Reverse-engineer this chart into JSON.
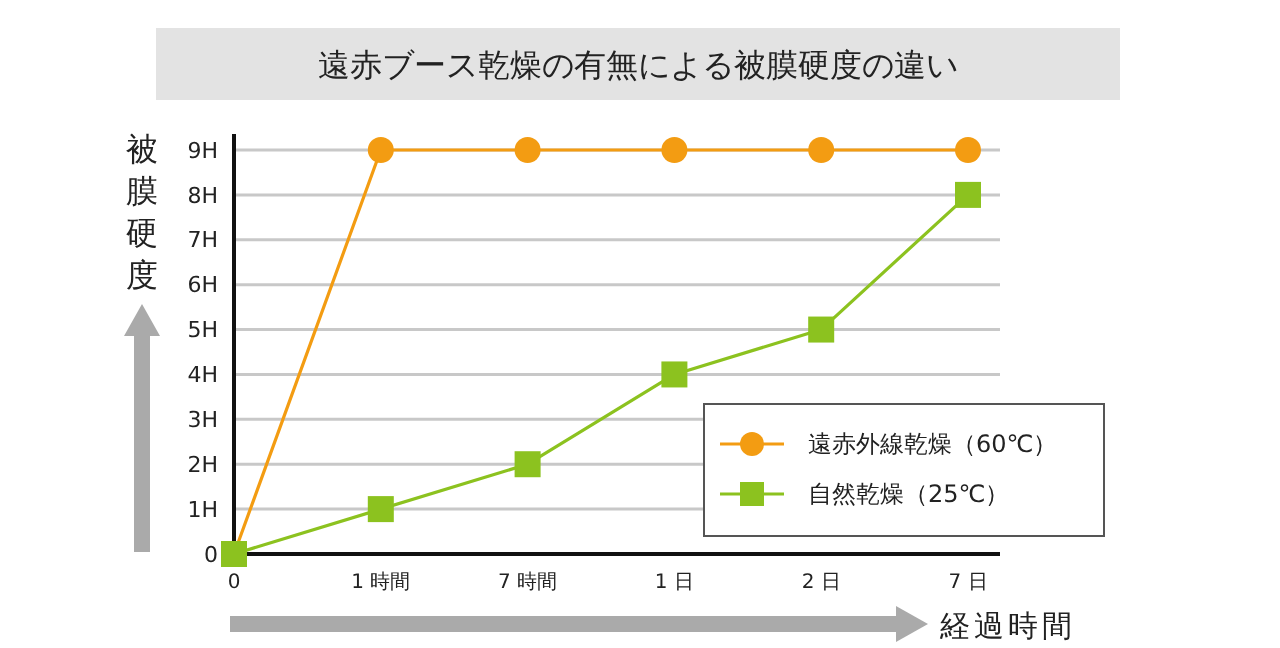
{
  "chart_data": {
    "type": "line",
    "title": "遠赤ブース乾燥の有無による被膜硬度の違い",
    "xlabel": "経過時間",
    "ylabel": "被膜硬度",
    "categories": [
      "0",
      "1 時間",
      "7 時間",
      "1 日",
      "2 日",
      "7 日"
    ],
    "series": [
      {
        "name": "遠赤外線乾燥（60℃）",
        "color": "#f39c12",
        "values": [
          0,
          9,
          9,
          9,
          9,
          9
        ],
        "marker": "circle"
      },
      {
        "name": "自然乾燥（25℃）",
        "color": "#8cc21f",
        "values": [
          0,
          1,
          2,
          4,
          5,
          8
        ],
        "marker": "square"
      }
    ],
    "ylim": [
      0,
      9
    ],
    "yticks": [
      0,
      {
        "value": 1,
        "label": "1H"
      },
      {
        "value": 2,
        "label": "2H"
      },
      {
        "value": 3,
        "label": "3H"
      },
      {
        "value": 4,
        "label": "4H"
      },
      {
        "value": 5,
        "label": "5H"
      },
      {
        "value": 6,
        "label": "6H"
      },
      {
        "value": 7,
        "label": "7H"
      },
      {
        "value": 8,
        "label": "8H"
      },
      {
        "value": 9,
        "label": "9H"
      }
    ],
    "grid": "y",
    "legend": "bottom right"
  }
}
